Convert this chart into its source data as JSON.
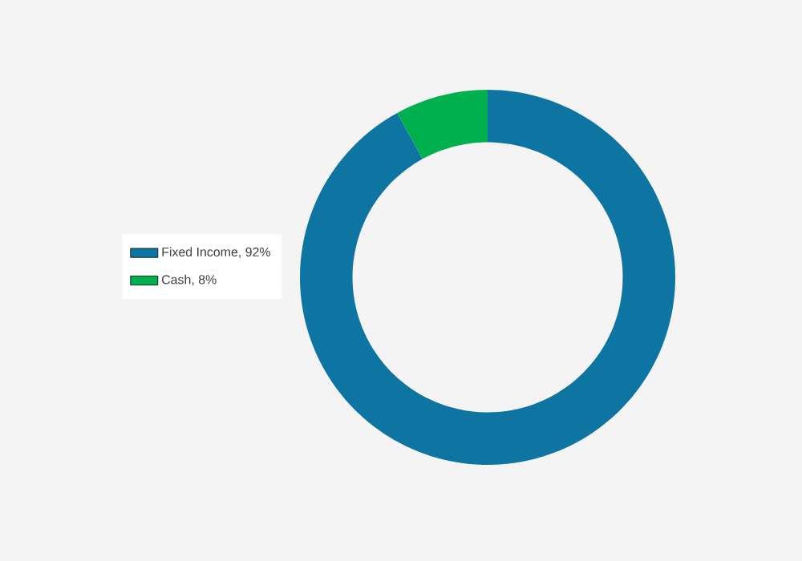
{
  "chart_data": {
    "type": "donut",
    "categories": [
      "Fixed Income, 92%",
      "Cash, 8%"
    ],
    "values": [
      92,
      8
    ],
    "colors": [
      "#0e75a3",
      "#00b04f"
    ],
    "legend": "left"
  }
}
